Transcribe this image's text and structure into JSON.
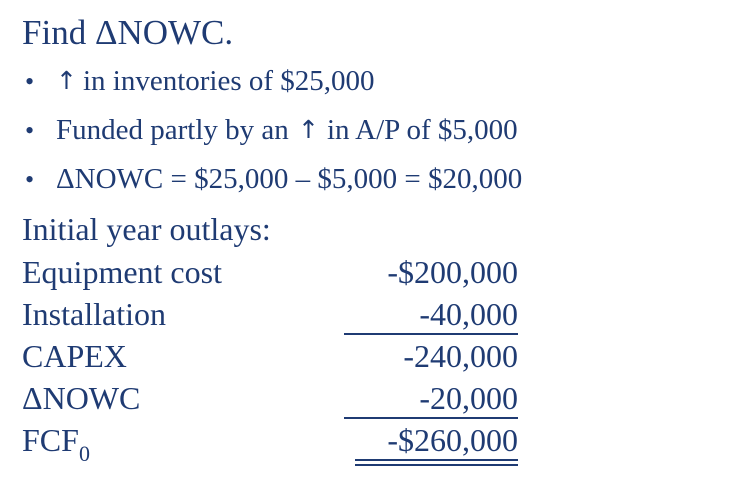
{
  "title": "Find ΔNOWC.",
  "bullets": [
    {
      "arrow": "↑",
      "text": "in inventories of $25,000"
    },
    {
      "text_before": "Funded partly by an",
      "arrow": "↑",
      "text_after": "in A/P of $5,000"
    },
    {
      "text": "ΔNOWC = $25,000 – $5,000 = $20,000"
    }
  ],
  "bullet_symbol": "•",
  "subheading": "Initial year outlays:",
  "outlays": [
    {
      "label": "Equipment cost",
      "value": "-$200,000"
    },
    {
      "label": "Installation",
      "value": "-40,000"
    },
    {
      "label": "CAPEX",
      "value": "-240,000"
    },
    {
      "label": "ΔNOWC",
      "value": "-20,000"
    },
    {
      "label_main": "FCF",
      "label_sub": "0",
      "value": "-$260,000"
    }
  ],
  "colors": {
    "text": "#1f3b73",
    "background": "#ffffff"
  }
}
